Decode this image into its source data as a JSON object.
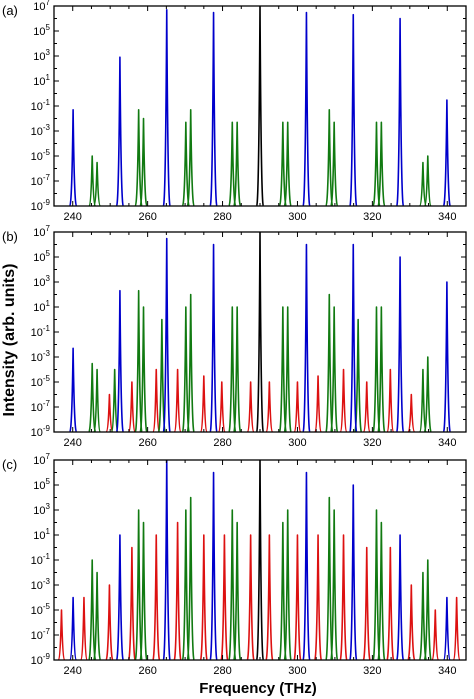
{
  "figure": {
    "xlabel": "Frequency (THz)",
    "ylabel": "Intensity (arb. units)"
  },
  "chart_data": [
    {
      "panel_label": "(a)",
      "type": "line",
      "x_scale": "linear",
      "y_scale": "log",
      "xlim": [
        235,
        345
      ],
      "ylim": [
        1e-09,
        10000000.0
      ],
      "x_ticks": [
        "240",
        "260",
        "280",
        "300",
        "320",
        "340"
      ],
      "y_ticks": [
        "10^-9",
        "10^-7",
        "10^-5",
        "10^-3",
        "10^-1",
        "10^1",
        "10^3",
        "10^5",
        "10^7"
      ],
      "x_tick_values": [
        240,
        260,
        280,
        300,
        320,
        340
      ],
      "y_tick_exponents": [
        -9,
        -7,
        -5,
        -3,
        -1,
        1,
        3,
        5,
        7
      ],
      "grid": false,
      "series_colors": {
        "black": "#000000",
        "blue": "#0000cc",
        "green": "#117a11",
        "red": "#dd1111"
      },
      "peaks": {
        "black": [
          {
            "x": 290,
            "y": 10000000.0
          }
        ],
        "blue": [
          {
            "x": 240.1,
            "y": 0.05
          },
          {
            "x": 252.6,
            "y": 800
          },
          {
            "x": 265.1,
            "y": 5000000.0
          },
          {
            "x": 277.6,
            "y": 3000000.0
          },
          {
            "x": 302.4,
            "y": 3000000.0
          },
          {
            "x": 314.9,
            "y": 2000000.0
          },
          {
            "x": 327.4,
            "y": 1000000.0
          },
          {
            "x": 339.9,
            "y": 0.3
          }
        ],
        "green": [
          {
            "x": 245.2,
            "y": 1e-05
          },
          {
            "x": 246.5,
            "y": 3e-06
          },
          {
            "x": 257.6,
            "y": 0.05
          },
          {
            "x": 258.9,
            "y": 0.01
          },
          {
            "x": 270.2,
            "y": 0.005
          },
          {
            "x": 271.5,
            "y": 0.05
          },
          {
            "x": 282.6,
            "y": 0.005
          },
          {
            "x": 283.9,
            "y": 0.005
          },
          {
            "x": 296.1,
            "y": 0.005
          },
          {
            "x": 297.4,
            "y": 0.005
          },
          {
            "x": 308.5,
            "y": 0.05
          },
          {
            "x": 309.8,
            "y": 0.005
          },
          {
            "x": 321.1,
            "y": 0.005
          },
          {
            "x": 322.4,
            "y": 0.005
          },
          {
            "x": 333.5,
            "y": 3e-06
          },
          {
            "x": 334.8,
            "y": 1e-05
          }
        ],
        "red": []
      }
    },
    {
      "panel_label": "(b)",
      "type": "line",
      "x_scale": "linear",
      "y_scale": "log",
      "xlim": [
        235,
        345
      ],
      "ylim": [
        1e-09,
        10000000.0
      ],
      "x_ticks": [
        "240",
        "260",
        "280",
        "300",
        "320",
        "340"
      ],
      "y_ticks": [
        "10^-9",
        "10^-7",
        "10^-5",
        "10^-3",
        "10^-1",
        "10^1",
        "10^3",
        "10^5",
        "10^7"
      ],
      "x_tick_values": [
        240,
        260,
        280,
        300,
        320,
        340
      ],
      "y_tick_exponents": [
        -9,
        -7,
        -5,
        -3,
        -1,
        1,
        3,
        5,
        7
      ],
      "grid": false,
      "series_colors": {
        "black": "#000000",
        "blue": "#0000cc",
        "green": "#117a11",
        "red": "#dd1111"
      },
      "peaks": {
        "black": [
          {
            "x": 290,
            "y": 10000000.0
          }
        ],
        "blue": [
          {
            "x": 240.1,
            "y": 0.005
          },
          {
            "x": 252.6,
            "y": 200
          },
          {
            "x": 265.1,
            "y": 3000000.0
          },
          {
            "x": 277.6,
            "y": 1000000.0
          },
          {
            "x": 302.4,
            "y": 1000000.0
          },
          {
            "x": 314.9,
            "y": 1000000.0
          },
          {
            "x": 327.4,
            "y": 100000
          },
          {
            "x": 339.9,
            "y": 1000
          }
        ],
        "green": [
          {
            "x": 245.2,
            "y": 0.0003
          },
          {
            "x": 246.5,
            "y": 0.0001
          },
          {
            "x": 251.2,
            "y": 0.0001
          },
          {
            "x": 257.6,
            "y": 200
          },
          {
            "x": 258.9,
            "y": 10
          },
          {
            "x": 263.8,
            "y": 1
          },
          {
            "x": 270.2,
            "y": 10
          },
          {
            "x": 271.5,
            "y": 100
          },
          {
            "x": 282.6,
            "y": 10
          },
          {
            "x": 283.9,
            "y": 10
          },
          {
            "x": 296.1,
            "y": 10
          },
          {
            "x": 297.4,
            "y": 10
          },
          {
            "x": 308.5,
            "y": 100
          },
          {
            "x": 309.8,
            "y": 10
          },
          {
            "x": 316.2,
            "y": 1
          },
          {
            "x": 321.1,
            "y": 10
          },
          {
            "x": 322.4,
            "y": 10
          },
          {
            "x": 333.5,
            "y": 0.0001
          },
          {
            "x": 334.8,
            "y": 0.001
          }
        ],
        "red": [
          {
            "x": 249.8,
            "y": 1e-06
          },
          {
            "x": 255.8,
            "y": 1e-05
          },
          {
            "x": 262.3,
            "y": 0.0001
          },
          {
            "x": 268.0,
            "y": 0.0001
          },
          {
            "x": 275.0,
            "y": 3e-05
          },
          {
            "x": 279.8,
            "y": 1e-05
          },
          {
            "x": 287.5,
            "y": 1e-05
          },
          {
            "x": 292.5,
            "y": 1e-05
          },
          {
            "x": 300.0,
            "y": 1e-05
          },
          {
            "x": 305.5,
            "y": 3e-05
          },
          {
            "x": 312.3,
            "y": 0.0001
          },
          {
            "x": 318.5,
            "y": 1e-05
          },
          {
            "x": 324.8,
            "y": 0.0001
          },
          {
            "x": 330.4,
            "y": 1e-06
          }
        ]
      }
    },
    {
      "panel_label": "(c)",
      "type": "line",
      "x_scale": "linear",
      "y_scale": "log",
      "xlim": [
        235,
        345
      ],
      "ylim": [
        1e-09,
        10000000.0
      ],
      "x_ticks": [
        "240",
        "260",
        "280",
        "300",
        "320",
        "340"
      ],
      "y_ticks": [
        "10^-9",
        "10^-7",
        "10^-5",
        "10^-3",
        "10^-1",
        "10^1",
        "10^3",
        "10^5",
        "10^7"
      ],
      "x_tick_values": [
        240,
        260,
        280,
        300,
        320,
        340
      ],
      "y_tick_exponents": [
        -9,
        -7,
        -5,
        -3,
        -1,
        1,
        3,
        5,
        7
      ],
      "grid": false,
      "series_colors": {
        "black": "#000000",
        "blue": "#0000cc",
        "green": "#117a11",
        "red": "#dd1111"
      },
      "peaks": {
        "black": [
          {
            "x": 290,
            "y": 10000000.0
          }
        ],
        "blue": [
          {
            "x": 240.1,
            "y": 0.0001
          },
          {
            "x": 252.6,
            "y": 10
          },
          {
            "x": 265.1,
            "y": 10000000.0
          },
          {
            "x": 277.6,
            "y": 1000000.0
          },
          {
            "x": 302.4,
            "y": 1000000.0
          },
          {
            "x": 314.9,
            "y": 100000
          },
          {
            "x": 327.4,
            "y": 10
          },
          {
            "x": 339.9,
            "y": 0.0001
          }
        ],
        "green": [
          {
            "x": 245.2,
            "y": 0.1
          },
          {
            "x": 246.5,
            "y": 0.01
          },
          {
            "x": 257.6,
            "y": 1000
          },
          {
            "x": 258.9,
            "y": 100
          },
          {
            "x": 270.2,
            "y": 1000
          },
          {
            "x": 271.5,
            "y": 10000
          },
          {
            "x": 282.6,
            "y": 1000
          },
          {
            "x": 283.9,
            "y": 100
          },
          {
            "x": 296.1,
            "y": 100
          },
          {
            "x": 297.4,
            "y": 1000
          },
          {
            "x": 308.5,
            "y": 10000
          },
          {
            "x": 309.8,
            "y": 1000
          },
          {
            "x": 321.1,
            "y": 1000
          },
          {
            "x": 322.4,
            "y": 100
          },
          {
            "x": 333.5,
            "y": 0.01
          },
          {
            "x": 334.8,
            "y": 0.1
          }
        ],
        "red": [
          {
            "x": 237.0,
            "y": 1e-05
          },
          {
            "x": 243.0,
            "y": 0.0001
          },
          {
            "x": 249.8,
            "y": 0.001
          },
          {
            "x": 255.8,
            "y": 1
          },
          {
            "x": 262.3,
            "y": 10
          },
          {
            "x": 268.0,
            "y": 100
          },
          {
            "x": 275.0,
            "y": 10
          },
          {
            "x": 280.5,
            "y": 10
          },
          {
            "x": 287.5,
            "y": 10
          },
          {
            "x": 292.5,
            "y": 10
          },
          {
            "x": 300.0,
            "y": 10
          },
          {
            "x": 305.5,
            "y": 10
          },
          {
            "x": 312.3,
            "y": 10
          },
          {
            "x": 318.5,
            "y": 1
          },
          {
            "x": 324.8,
            "y": 1
          },
          {
            "x": 330.4,
            "y": 0.001
          },
          {
            "x": 336.8,
            "y": 1e-05
          },
          {
            "x": 342.5,
            "y": 0.0001
          }
        ]
      }
    }
  ]
}
